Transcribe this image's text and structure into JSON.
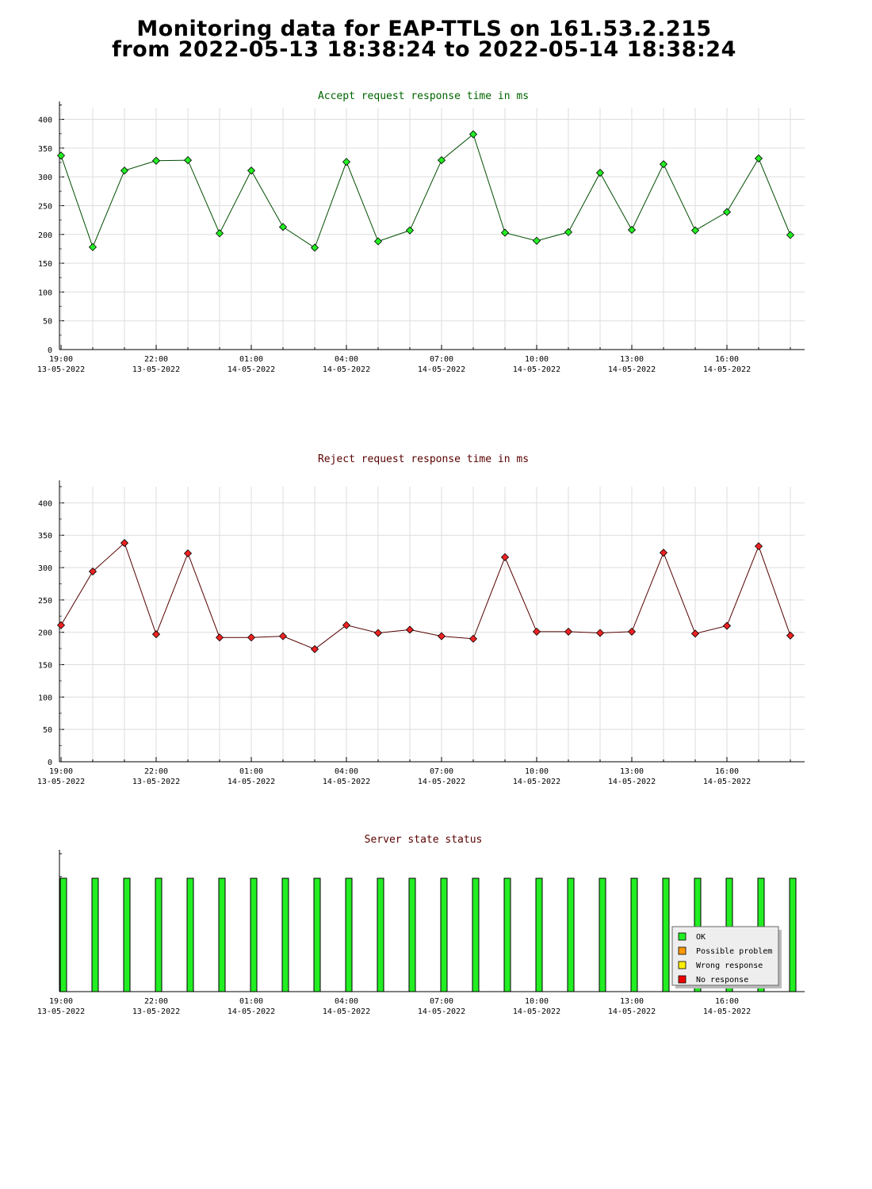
{
  "page": {
    "title_line1": "Monitoring data for EAP-TTLS on 161.53.2.215",
    "title_line2": "from 2022-05-13 18:38:24 to 2022-05-14 18:38:24"
  },
  "colors": {
    "accept_title": "#006400",
    "reject_title": "#5a0000",
    "status_title": "#5a0000",
    "accept_line": "#004d00",
    "accept_marker": "#22ee22",
    "reject_line": "#550000",
    "reject_marker": "#ee2222",
    "status_bar": "#22ee22",
    "grid": "#dddddd"
  },
  "chart_data": [
    {
      "type": "line",
      "title": "Accept request response time in ms",
      "x_tick_labels": [
        [
          "19:00",
          "13-05-2022"
        ],
        [
          "22:00",
          "13-05-2022"
        ],
        [
          "01:00",
          "14-05-2022"
        ],
        [
          "04:00",
          "14-05-2022"
        ],
        [
          "07:00",
          "14-05-2022"
        ],
        [
          "10:00",
          "14-05-2022"
        ],
        [
          "13:00",
          "14-05-2022"
        ],
        [
          "16:00",
          "14-05-2022"
        ]
      ],
      "x": [
        "2022-05-13 19:00",
        "2022-05-13 20:00",
        "2022-05-13 21:00",
        "2022-05-13 22:00",
        "2022-05-13 23:00",
        "2022-05-14 00:00",
        "2022-05-14 01:00",
        "2022-05-14 02:00",
        "2022-05-14 03:00",
        "2022-05-14 04:00",
        "2022-05-14 05:00",
        "2022-05-14 06:00",
        "2022-05-14 07:00",
        "2022-05-14 08:00",
        "2022-05-14 09:00",
        "2022-05-14 10:00",
        "2022-05-14 11:00",
        "2022-05-14 12:00",
        "2022-05-14 13:00",
        "2022-05-14 14:00",
        "2022-05-14 15:00",
        "2022-05-14 16:00",
        "2022-05-14 17:00",
        "2022-05-14 18:00"
      ],
      "values": [
        337,
        178,
        311,
        328,
        329,
        202,
        311,
        213,
        177,
        326,
        188,
        207,
        329,
        374,
        203,
        189,
        204,
        307,
        208,
        322,
        207,
        239,
        332,
        199
      ],
      "ylim": [
        0,
        420
      ],
      "y_ticks": [
        0,
        50,
        100,
        150,
        200,
        250,
        300,
        350,
        400
      ],
      "grid": true
    },
    {
      "type": "line",
      "title": "Reject request response time in ms",
      "x_tick_labels": [
        [
          "19:00",
          "13-05-2022"
        ],
        [
          "22:00",
          "13-05-2022"
        ],
        [
          "01:00",
          "14-05-2022"
        ],
        [
          "04:00",
          "14-05-2022"
        ],
        [
          "07:00",
          "14-05-2022"
        ],
        [
          "10:00",
          "14-05-2022"
        ],
        [
          "13:00",
          "14-05-2022"
        ],
        [
          "16:00",
          "14-05-2022"
        ]
      ],
      "x": [
        "2022-05-13 19:00",
        "2022-05-13 20:00",
        "2022-05-13 21:00",
        "2022-05-13 22:00",
        "2022-05-13 23:00",
        "2022-05-14 00:00",
        "2022-05-14 01:00",
        "2022-05-14 02:00",
        "2022-05-14 03:00",
        "2022-05-14 04:00",
        "2022-05-14 05:00",
        "2022-05-14 06:00",
        "2022-05-14 07:00",
        "2022-05-14 08:00",
        "2022-05-14 09:00",
        "2022-05-14 10:00",
        "2022-05-14 11:00",
        "2022-05-14 12:00",
        "2022-05-14 13:00",
        "2022-05-14 14:00",
        "2022-05-14 15:00",
        "2022-05-14 16:00",
        "2022-05-14 17:00",
        "2022-05-14 18:00"
      ],
      "values": [
        211,
        294,
        338,
        197,
        322,
        192,
        192,
        194,
        174,
        211,
        199,
        204,
        194,
        190,
        316,
        201,
        201,
        199,
        201,
        323,
        198,
        210,
        333,
        195
      ],
      "ylim": [
        0,
        425
      ],
      "y_ticks": [
        0,
        50,
        100,
        150,
        200,
        250,
        300,
        350,
        400
      ],
      "grid": true
    },
    {
      "type": "bar",
      "title": "Server state status",
      "x_tick_labels": [
        [
          "19:00",
          "13-05-2022"
        ],
        [
          "22:00",
          "13-05-2022"
        ],
        [
          "01:00",
          "14-05-2022"
        ],
        [
          "04:00",
          "14-05-2022"
        ],
        [
          "07:00",
          "14-05-2022"
        ],
        [
          "10:00",
          "14-05-2022"
        ],
        [
          "13:00",
          "14-05-2022"
        ],
        [
          "16:00",
          "14-05-2022"
        ]
      ],
      "x": [
        "2022-05-13 19:00",
        "2022-05-13 20:00",
        "2022-05-13 21:00",
        "2022-05-13 22:00",
        "2022-05-13 23:00",
        "2022-05-14 00:00",
        "2022-05-14 01:00",
        "2022-05-14 02:00",
        "2022-05-14 03:00",
        "2022-05-14 04:00",
        "2022-05-14 05:00",
        "2022-05-14 06:00",
        "2022-05-14 07:00",
        "2022-05-14 08:00",
        "2022-05-14 09:00",
        "2022-05-14 10:00",
        "2022-05-14 11:00",
        "2022-05-14 12:00",
        "2022-05-14 13:00",
        "2022-05-14 14:00",
        "2022-05-14 15:00",
        "2022-05-14 16:00",
        "2022-05-14 17:00",
        "2022-05-14 18:00"
      ],
      "status": [
        "OK",
        "OK",
        "OK",
        "OK",
        "OK",
        "OK",
        "OK",
        "OK",
        "OK",
        "OK",
        "OK",
        "OK",
        "OK",
        "OK",
        "OK",
        "OK",
        "OK",
        "OK",
        "OK",
        "OK",
        "OK",
        "OK",
        "OK",
        "OK"
      ],
      "legend_position": "bottom-right",
      "legend": [
        {
          "label": "OK",
          "color": "#22ee22"
        },
        {
          "label": "Possible problem",
          "color": "#ff9900"
        },
        {
          "label": "Wrong response",
          "color": "#ffee00"
        },
        {
          "label": "No response",
          "color": "#ee0000"
        }
      ]
    }
  ]
}
